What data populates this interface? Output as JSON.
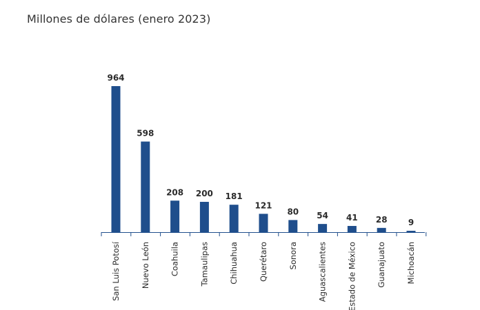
{
  "title": "Millones de dólares (enero 2023)",
  "colors": {
    "bar": "#1f4e8c",
    "axis": "#1f4e8c",
    "text": "#2b2b2b"
  },
  "chart_data": {
    "type": "bar",
    "title": "Millones de dólares (enero 2023)",
    "xlabel": "",
    "ylabel": "",
    "categories": [
      "San Luis Potosí",
      "Nuevo León",
      "Coahuila",
      "Tamaulipas",
      "Chihuahua",
      "Querétaro",
      "Sonora",
      "Aguascalientes",
      "Estado de México",
      "Guanajuato",
      "Michoacán"
    ],
    "values": [
      964,
      598,
      208,
      200,
      181,
      121,
      80,
      54,
      41,
      28,
      9
    ],
    "ylim": [
      0,
      964
    ],
    "grid": false,
    "legend": "none"
  }
}
